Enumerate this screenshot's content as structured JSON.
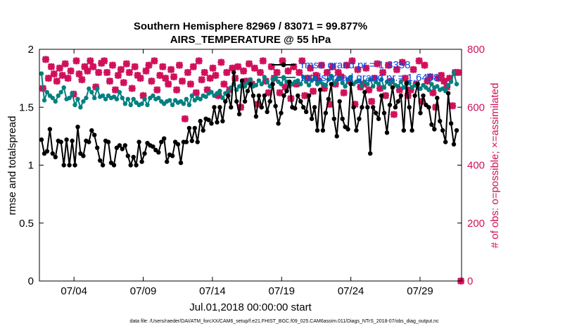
{
  "chart_data": {
    "type": "line",
    "title": "Southern Hemisphere 82969 / 83071 = 99.877%",
    "subtitle": "AIRS_TEMPERATURE @ 55 hPa",
    "xlabel": "Jul.01,2018 00:00:00 start",
    "ylabel": "rmse and totalspread",
    "ylabel_right": "# of obs: o=possible; ×=assimilated",
    "x_ticks": [
      "07/04",
      "07/09",
      "07/14",
      "07/19",
      "07/24",
      "07/29"
    ],
    "y_ticks": [
      "0",
      "0.5",
      "1",
      "1.5",
      "2"
    ],
    "y_ticks_right": [
      "0",
      "200",
      "400",
      "600",
      "800"
    ],
    "ylim": [
      0,
      2
    ],
    "ylim_right": [
      0,
      800
    ],
    "footnote": "data file: /Users/raeder/DAI/ATM_forcXX/CAM6_setup/f.e21.FHIST_BGC.f09_025.CAM6assim.011/Diags_NTrS_2018-07/obs_diag_output.nc",
    "legend": [
      {
        "label": "rmse grand pr.= 1.3358",
        "color": "#000000"
      },
      {
        "label": "totalspread grand pr.= 1.6458",
        "color": "#008080"
      }
    ],
    "series": [
      {
        "name": "rmse grand pr.= 1.3358",
        "color": "#000000",
        "axis": "left",
        "values": [
          1.22,
          1.1,
          1.12,
          1.31,
          1.1,
          1.07,
          1.21,
          1.2,
          1.0,
          1.22,
          1.0,
          1.21,
          1.0,
          1.33,
          1.1,
          1.08,
          1.21,
          1.2,
          1.3,
          1.26,
          1.15,
          1.04,
          1.0,
          1.21,
          1.2,
          1.02,
          1.0,
          1.15,
          1.17,
          1.14,
          1.17,
          1.08,
          1.0,
          1.07,
          1.0,
          1.2,
          1.03,
          1.1,
          1.19,
          1.17,
          1.16,
          1.13,
          1.11,
          1.2,
          1.23,
          1.03,
          1.09,
          1.08,
          1.2,
          1.18,
          1.02,
          1.2,
          1.2,
          1.32,
          1.21,
          1.32,
          1.2,
          1.38,
          1.3,
          1.4,
          1.39,
          1.36,
          1.5,
          1.37,
          1.5,
          1.38,
          1.55,
          1.6,
          1.5,
          1.8,
          1.55,
          1.44,
          1.73,
          1.55,
          1.64,
          1.7,
          1.6,
          1.42,
          1.6,
          1.5,
          1.6,
          1.46,
          1.55,
          1.7,
          1.51,
          1.36,
          1.45,
          1.6,
          1.64,
          1.72,
          1.5,
          1.49,
          1.6,
          1.55,
          1.5,
          1.46,
          1.6,
          1.4,
          1.5,
          1.3,
          1.65,
          1.3,
          1.45,
          1.57,
          1.7,
          1.4,
          1.25,
          1.55,
          1.4,
          1.33,
          1.31,
          1.7,
          1.5,
          1.3,
          1.4,
          1.5,
          1.63,
          1.5,
          1.1,
          1.5,
          1.45,
          1.4,
          1.6,
          1.45,
          1.28,
          1.52,
          1.67,
          1.5,
          1.55,
          1.6,
          1.3,
          1.71,
          1.5,
          1.3,
          1.6,
          1.7,
          1.45,
          1.6,
          1.52,
          1.5,
          1.35,
          1.31,
          1.58,
          1.38,
          1.3,
          1.2,
          1.62,
          1.36,
          1.18,
          1.3
        ]
      },
      {
        "name": "totalspread grand pr.= 1.6458",
        "color": "#008080",
        "axis": "left",
        "values": [
          1.79,
          1.56,
          1.63,
          1.6,
          1.58,
          1.55,
          1.6,
          1.63,
          1.67,
          1.57,
          1.58,
          1.62,
          1.52,
          1.57,
          1.5,
          1.55,
          1.58,
          1.66,
          1.63,
          1.58,
          1.66,
          1.59,
          1.6,
          1.57,
          1.6,
          1.58,
          1.59,
          1.57,
          1.63,
          1.58,
          1.53,
          1.57,
          1.52,
          1.57,
          1.54,
          1.52,
          1.53,
          1.57,
          1.52,
          1.58,
          1.6,
          1.57,
          1.58,
          1.55,
          1.53,
          1.55,
          1.56,
          1.52,
          1.56,
          1.54,
          1.55,
          1.53,
          1.57,
          1.52,
          1.6,
          1.56,
          1.58,
          1.57,
          1.6,
          1.59,
          1.62,
          1.63,
          1.6,
          1.62,
          1.64,
          1.58,
          1.62,
          1.63,
          1.67,
          1.7,
          1.65,
          1.68,
          1.72,
          1.68,
          1.71,
          1.74,
          1.68,
          1.69,
          1.73,
          1.7,
          1.76,
          1.72,
          1.68,
          1.74,
          1.76,
          1.72,
          1.7,
          1.75,
          1.72,
          1.68,
          1.7,
          1.72,
          1.73,
          1.7,
          1.76,
          1.72,
          1.69,
          1.73,
          1.75,
          1.7,
          1.72,
          1.7,
          1.69,
          1.74,
          1.77,
          1.7,
          1.73,
          1.75,
          1.71,
          1.68,
          1.74,
          1.76,
          1.7,
          1.72,
          1.73,
          1.68,
          1.72,
          1.7,
          1.74,
          1.68,
          1.72,
          1.7,
          1.74,
          1.67,
          1.72,
          1.7,
          1.73,
          1.69,
          1.68,
          1.72,
          1.67,
          1.7,
          1.71,
          1.67,
          1.69,
          1.7,
          1.66,
          1.69,
          1.67,
          1.65,
          1.7,
          1.67,
          1.68,
          1.65,
          1.66,
          1.64,
          1.69,
          1.72,
          1.8,
          1.7
        ]
      },
      {
        "name": "",
        "color": "#d0105a",
        "axis": "right",
        "marker": "cross",
        "values": [
          665,
          765,
          700,
          740,
          715,
          690,
          735,
          710,
          750,
          700,
          725,
          645,
          760,
          715,
          695,
          740,
          725,
          760,
          740,
          670,
          720,
          752,
          760,
          720,
          690,
          745,
          660,
          710,
          730,
          685,
          750,
          720,
          665,
          740,
          710,
          700,
          640,
          725,
          745,
          690,
          760,
          660,
          710,
          740,
          700,
          680,
          730,
          705,
          660,
          745,
          690,
          560,
          720,
          680,
          740,
          650,
          760,
          695,
          720,
          660,
          700,
          735,
          710,
          640,
          755,
          680,
          720,
          660,
          735,
          700,
          740,
          600,
          725,
          690,
          750,
          680,
          735,
          610,
          720,
          760,
          690,
          650,
          740,
          700,
          720,
          650,
          760,
          670,
          725,
          630,
          740,
          680,
          720,
          760,
          640,
          700,
          735,
          655,
          710,
          690,
          745,
          665,
          720,
          610,
          740,
          680,
          720,
          705,
          650,
          745,
          690,
          760,
          610,
          730,
          670,
          680,
          735,
          660,
          620,
          700,
          750,
          665,
          720,
          640,
          745,
          690,
          575,
          730,
          660,
          755,
          700,
          640,
          660,
          730,
          680,
          760,
          620,
          745,
          690,
          705,
          650,
          600,
          700,
          710,
          690,
          670,
          700,
          605,
          720,
          720
        ]
      }
    ]
  }
}
